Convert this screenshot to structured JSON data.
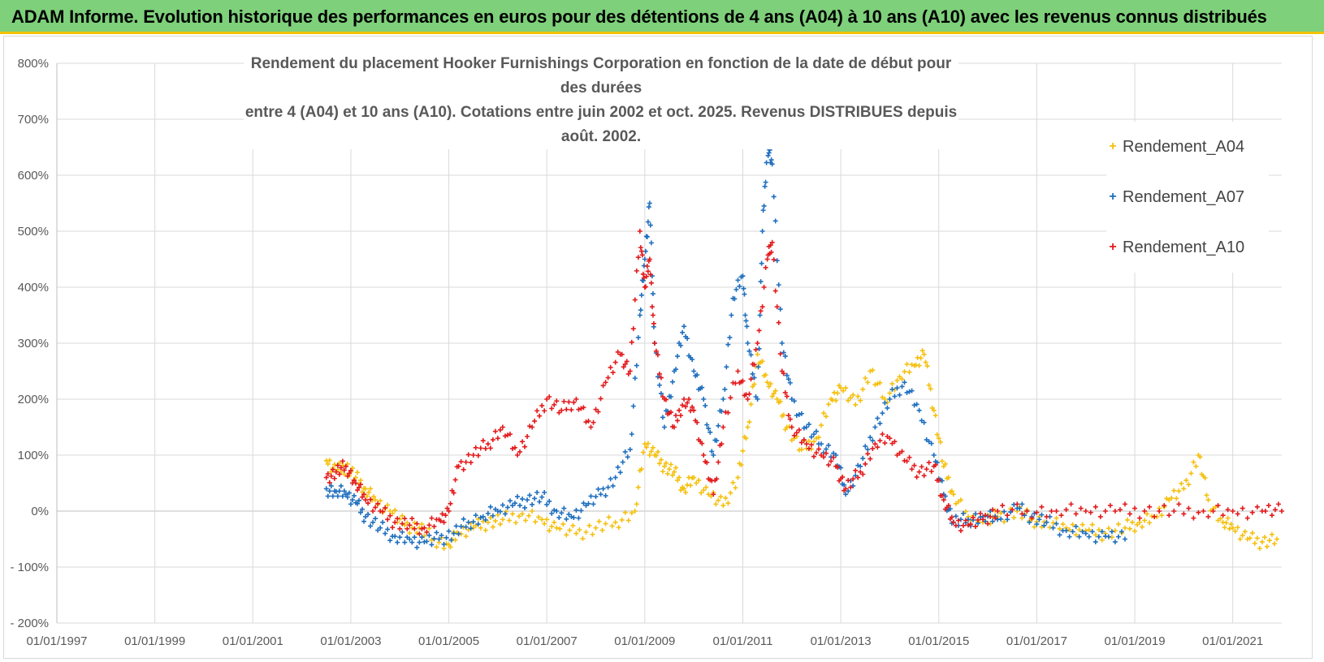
{
  "header": {
    "title": "ADAM Informe. Evolution historique des performances en euros pour des détentions de 4 ans (A04) à 10 ans (A10) avec les revenus connus distribués"
  },
  "chart_data": {
    "type": "scatter",
    "title_lines": [
      "Rendement du placement Hooker Furnishings Corporation en fonction de la date de début pour des durées",
      "entre 4 (A04) et 10 ans (A10). Cotations entre juin 2002 et oct. 2025. Revenus DISTRIBUES depuis août. 2002."
    ],
    "x_tick_labels": [
      "01/01/1997",
      "01/01/1999",
      "01/01/2001",
      "01/01/2003",
      "01/01/2005",
      "01/01/2007",
      "01/01/2009",
      "01/01/2011",
      "01/01/2013",
      "01/01/2015",
      "01/01/2017",
      "01/01/2019",
      "01/01/2021"
    ],
    "xlim": [
      1997.0,
      2022.0
    ],
    "y_tick_labels": [
      "800%",
      "700%",
      "600%",
      "500%",
      "400%",
      "300%",
      "200%",
      "100%",
      "0%",
      "- 100%",
      "- 200%"
    ],
    "ylim": [
      -200,
      800
    ],
    "marker": "+",
    "legend_position": "top-right",
    "series": [
      {
        "name": "Rendement_A04",
        "color": "#f5c00f",
        "points": [
          [
            2002.5,
            90
          ],
          [
            2002.7,
            70
          ],
          [
            2002.9,
            80
          ],
          [
            2003.1,
            60
          ],
          [
            2003.3,
            40
          ],
          [
            2003.5,
            20
          ],
          [
            2003.8,
            0
          ],
          [
            2004.1,
            -25
          ],
          [
            2004.4,
            -30
          ],
          [
            2004.7,
            -50
          ],
          [
            2005.0,
            -60
          ],
          [
            2005.2,
            -40
          ],
          [
            2005.5,
            -30
          ],
          [
            2005.8,
            -20
          ],
          [
            2006.1,
            -15
          ],
          [
            2006.5,
            -5
          ],
          [
            2006.9,
            -15
          ],
          [
            2007.2,
            -30
          ],
          [
            2007.6,
            -40
          ],
          [
            2008.0,
            -30
          ],
          [
            2008.4,
            -20
          ],
          [
            2008.8,
            0
          ],
          [
            2009.0,
            120
          ],
          [
            2009.2,
            100
          ],
          [
            2009.4,
            80
          ],
          [
            2009.6,
            70
          ],
          [
            2009.8,
            40
          ],
          [
            2010.0,
            60
          ],
          [
            2010.3,
            30
          ],
          [
            2010.6,
            10
          ],
          [
            2010.9,
            60
          ],
          [
            2011.1,
            150
          ],
          [
            2011.3,
            280
          ],
          [
            2011.5,
            230
          ],
          [
            2011.7,
            200
          ],
          [
            2011.9,
            150
          ],
          [
            2012.2,
            110
          ],
          [
            2012.5,
            130
          ],
          [
            2012.8,
            200
          ],
          [
            2013.0,
            220
          ],
          [
            2013.3,
            190
          ],
          [
            2013.6,
            250
          ],
          [
            2013.9,
            200
          ],
          [
            2014.2,
            240
          ],
          [
            2014.5,
            260
          ],
          [
            2014.7,
            280
          ],
          [
            2014.9,
            180
          ],
          [
            2015.1,
            80
          ],
          [
            2015.3,
            30
          ],
          [
            2015.6,
            -10
          ],
          [
            2015.9,
            -20
          ],
          [
            2016.2,
            -10
          ],
          [
            2016.6,
            0
          ],
          [
            2016.9,
            -15
          ],
          [
            2017.2,
            -20
          ],
          [
            2017.6,
            -30
          ],
          [
            2018.0,
            -35
          ],
          [
            2018.4,
            -40
          ],
          [
            2018.8,
            -30
          ],
          [
            2019.1,
            -20
          ],
          [
            2019.4,
            -10
          ],
          [
            2019.7,
            20
          ],
          [
            2020.0,
            40
          ],
          [
            2020.3,
            100
          ],
          [
            2020.5,
            20
          ],
          [
            2020.8,
            -20
          ],
          [
            2021.0,
            -30
          ],
          [
            2021.3,
            -50
          ],
          [
            2021.6,
            -55
          ],
          [
            2021.9,
            -50
          ]
        ]
      },
      {
        "name": "Rendement_A07",
        "color": "#1f6fbf",
        "points": [
          [
            2002.5,
            40
          ],
          [
            2002.7,
            35
          ],
          [
            2002.9,
            30
          ],
          [
            2003.1,
            15
          ],
          [
            2003.3,
            -10
          ],
          [
            2003.6,
            -30
          ],
          [
            2003.9,
            -45
          ],
          [
            2004.2,
            -50
          ],
          [
            2004.5,
            -55
          ],
          [
            2004.8,
            -50
          ],
          [
            2005.1,
            -40
          ],
          [
            2005.4,
            -20
          ],
          [
            2005.7,
            -10
          ],
          [
            2006.0,
            0
          ],
          [
            2006.3,
            10
          ],
          [
            2006.6,
            20
          ],
          [
            2006.9,
            25
          ],
          [
            2007.2,
            0
          ],
          [
            2007.5,
            -10
          ],
          [
            2007.8,
            10
          ],
          [
            2008.1,
            30
          ],
          [
            2008.4,
            60
          ],
          [
            2008.7,
            110
          ],
          [
            2008.9,
            350
          ],
          [
            2009.0,
            450
          ],
          [
            2009.1,
            550
          ],
          [
            2009.2,
            300
          ],
          [
            2009.4,
            150
          ],
          [
            2009.6,
            250
          ],
          [
            2009.8,
            330
          ],
          [
            2010.0,
            250
          ],
          [
            2010.2,
            200
          ],
          [
            2010.4,
            100
          ],
          [
            2010.6,
            200
          ],
          [
            2010.8,
            380
          ],
          [
            2011.0,
            420
          ],
          [
            2011.1,
            300
          ],
          [
            2011.3,
            200
          ],
          [
            2011.4,
            500
          ],
          [
            2011.5,
            650
          ],
          [
            2011.6,
            620
          ],
          [
            2011.8,
            300
          ],
          [
            2012.0,
            200
          ],
          [
            2012.3,
            150
          ],
          [
            2012.6,
            120
          ],
          [
            2012.9,
            100
          ],
          [
            2013.1,
            30
          ],
          [
            2013.4,
            80
          ],
          [
            2013.7,
            150
          ],
          [
            2014.0,
            200
          ],
          [
            2014.3,
            230
          ],
          [
            2014.6,
            180
          ],
          [
            2014.9,
            100
          ],
          [
            2015.1,
            30
          ],
          [
            2015.3,
            -20
          ],
          [
            2015.6,
            -15
          ],
          [
            2015.9,
            -10
          ],
          [
            2016.2,
            -15
          ],
          [
            2016.6,
            5
          ],
          [
            2016.9,
            -10
          ],
          [
            2017.2,
            -20
          ],
          [
            2017.6,
            -35
          ],
          [
            2018.0,
            -40
          ],
          [
            2018.4,
            -45
          ],
          [
            2018.8,
            -50
          ]
        ]
      },
      {
        "name": "Rendement_A10",
        "color": "#e31a1c",
        "points": [
          [
            2002.5,
            60
          ],
          [
            2002.7,
            70
          ],
          [
            2002.9,
            80
          ],
          [
            2003.1,
            50
          ],
          [
            2003.3,
            20
          ],
          [
            2003.6,
            0
          ],
          [
            2003.9,
            -20
          ],
          [
            2004.2,
            -25
          ],
          [
            2004.5,
            -30
          ],
          [
            2004.8,
            -15
          ],
          [
            2005.0,
            0
          ],
          [
            2005.2,
            80
          ],
          [
            2005.5,
            100
          ],
          [
            2005.8,
            120
          ],
          [
            2006.1,
            150
          ],
          [
            2006.4,
            100
          ],
          [
            2006.7,
            150
          ],
          [
            2007.0,
            200
          ],
          [
            2007.3,
            180
          ],
          [
            2007.6,
            200
          ],
          [
            2007.9,
            150
          ],
          [
            2008.2,
            230
          ],
          [
            2008.5,
            280
          ],
          [
            2008.7,
            250
          ],
          [
            2008.9,
            500
          ],
          [
            2009.0,
            400
          ],
          [
            2009.1,
            450
          ],
          [
            2009.2,
            300
          ],
          [
            2009.4,
            200
          ],
          [
            2009.6,
            150
          ],
          [
            2009.8,
            200
          ],
          [
            2010.0,
            180
          ],
          [
            2010.2,
            100
          ],
          [
            2010.4,
            30
          ],
          [
            2010.6,
            150
          ],
          [
            2010.9,
            250
          ],
          [
            2011.1,
            200
          ],
          [
            2011.3,
            300
          ],
          [
            2011.5,
            450
          ],
          [
            2011.6,
            480
          ],
          [
            2011.8,
            250
          ],
          [
            2012.0,
            150
          ],
          [
            2012.3,
            120
          ],
          [
            2012.6,
            100
          ],
          [
            2012.9,
            80
          ],
          [
            2013.1,
            40
          ],
          [
            2013.4,
            70
          ],
          [
            2013.7,
            120
          ],
          [
            2014.0,
            130
          ],
          [
            2014.3,
            90
          ],
          [
            2014.6,
            70
          ],
          [
            2014.9,
            80
          ],
          [
            2015.1,
            20
          ],
          [
            2015.3,
            -20
          ],
          [
            2015.6,
            -25
          ],
          [
            2015.9,
            -15
          ],
          [
            2016.2,
            0
          ],
          [
            2016.8,
            0
          ],
          [
            2017.4,
            0
          ],
          [
            2018.0,
            0
          ],
          [
            2018.6,
            0
          ],
          [
            2019.2,
            0
          ],
          [
            2019.8,
            0
          ],
          [
            2020.4,
            0
          ],
          [
            2021.0,
            0
          ],
          [
            2021.6,
            0
          ],
          [
            2022.0,
            0
          ]
        ]
      }
    ]
  }
}
